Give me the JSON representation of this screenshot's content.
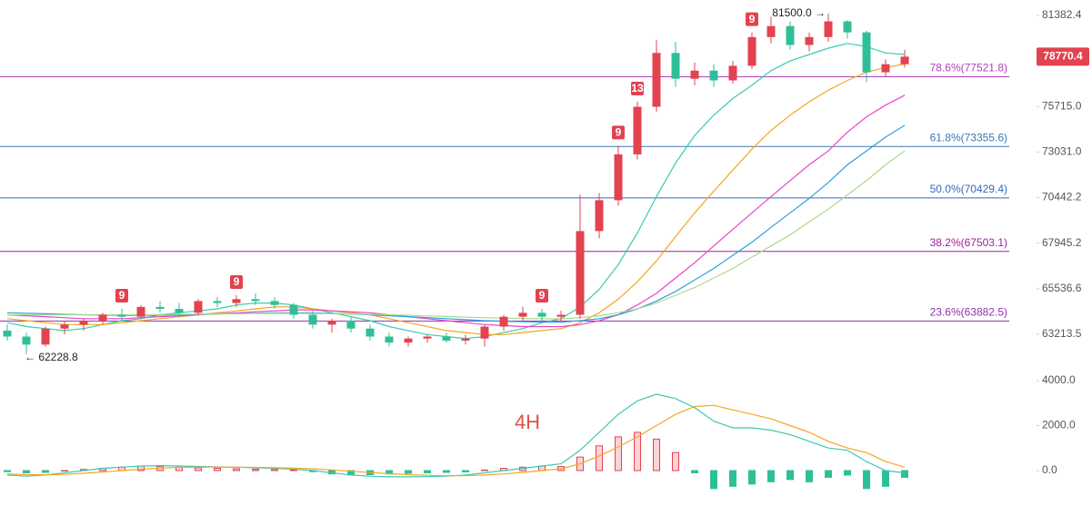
{
  "chart_data": [
    {
      "type": "candlestick",
      "log_scale": true,
      "ylim": [
        61774,
        82384
      ],
      "yticks": [
        81382.4,
        {
          "value": 75715.0,
          "label": "75715.0"
        },
        {
          "value": 73031.0,
          "label": "73031.0"
        },
        70442.2,
        67945.2,
        65536.6,
        63213.5
      ],
      "up_color": "#e3424f",
      "down_color": "#2fbf98",
      "open": [
        63400,
        63100,
        62700,
        63500,
        63700,
        63900,
        64200,
        64100,
        64600,
        64500,
        64300,
        64900,
        64800,
        65000,
        64900,
        64700,
        64200,
        63700,
        63900,
        63500,
        63100,
        62800,
        63000,
        63100,
        62900,
        63000,
        63600,
        64100,
        64300,
        64100,
        64200,
        68600,
        70300,
        72900,
        75700,
        79000,
        77400,
        77900,
        77300,
        78200,
        80000,
        80700,
        79500,
        80000,
        81000,
        80300,
        77800,
        78300
      ],
      "high": [
        63700,
        63300,
        63600,
        63900,
        64000,
        64300,
        64500,
        64700,
        64900,
        64800,
        65000,
        65100,
        65200,
        65300,
        65100,
        64800,
        64400,
        64000,
        64100,
        63700,
        63300,
        63100,
        63200,
        63300,
        63200,
        63700,
        64200,
        64600,
        64500,
        64400,
        70600,
        70700,
        73400,
        76000,
        79800,
        79700,
        78400,
        78300,
        78500,
        80300,
        81300,
        81000,
        80300,
        81500,
        81100,
        80400,
        78600,
        79200
      ],
      "low": [
        62900,
        62228.8,
        62600,
        63200,
        63400,
        63700,
        63900,
        64000,
        64300,
        64100,
        64200,
        64600,
        64600,
        64700,
        64500,
        64000,
        63500,
        63300,
        63300,
        62900,
        62600,
        62600,
        62800,
        62800,
        62700,
        62600,
        63400,
        63900,
        63900,
        63900,
        64000,
        68200,
        70000,
        72600,
        75400,
        76900,
        77000,
        76900,
        77100,
        78000,
        79600,
        79200,
        79100,
        79700,
        79900,
        77200,
        77500,
        78100
      ],
      "close": [
        63100,
        62700,
        63500,
        63700,
        63900,
        64200,
        64100,
        64600,
        64500,
        64300,
        64900,
        64800,
        65000,
        64900,
        64700,
        64200,
        63700,
        63900,
        63500,
        63100,
        62800,
        63000,
        63100,
        62900,
        63000,
        63600,
        64100,
        64300,
        64100,
        64200,
        68600,
        70300,
        72900,
        75700,
        79000,
        77400,
        77900,
        77300,
        78200,
        80000,
        80700,
        79500,
        80000,
        81000,
        80300,
        77800,
        78300,
        78770.4
      ],
      "td_labels": [
        null,
        null,
        null,
        null,
        null,
        null,
        "9",
        null,
        null,
        null,
        null,
        null,
        "9",
        null,
        null,
        null,
        null,
        null,
        null,
        null,
        null,
        null,
        null,
        null,
        null,
        null,
        null,
        null,
        "9",
        null,
        null,
        null,
        "9",
        "13",
        null,
        null,
        null,
        null,
        null,
        "9",
        null,
        null,
        null,
        null,
        null,
        null,
        null,
        null
      ],
      "high_label": "81500.0 →",
      "low_label": "← 62228.8",
      "series": [
        {
          "color": "#3cc9b3",
          "values": [
            63800,
            63600,
            63500,
            63400,
            63500,
            63700,
            63900,
            64000,
            64200,
            64300,
            64400,
            64500,
            64700,
            64800,
            64800,
            64700,
            64500,
            64300,
            64100,
            63900,
            63600,
            63400,
            63200,
            63100,
            63000,
            63100,
            63300,
            63500,
            63800,
            64000,
            64600,
            65500,
            66800,
            68500,
            70500,
            72400,
            74000,
            75200,
            76200,
            77000,
            77900,
            78500,
            78900,
            79300,
            79600,
            79400,
            79000,
            78900
          ]
        },
        {
          "color": "#f5a623",
          "values": [
            64000,
            63900,
            63800,
            63700,
            63700,
            63700,
            63800,
            63900,
            64000,
            64100,
            64200,
            64300,
            64400,
            64500,
            64600,
            64600,
            64500,
            64400,
            64300,
            64200,
            64000,
            63800,
            63600,
            63400,
            63300,
            63200,
            63200,
            63300,
            63400,
            63500,
            63800,
            64300,
            65000,
            65900,
            67000,
            68300,
            69600,
            70800,
            72000,
            73200,
            74300,
            75200,
            76000,
            76700,
            77300,
            77800,
            78100,
            78300
          ]
        },
        {
          "color": "#e845c8",
          "values": [
            64200,
            64150,
            64100,
            64050,
            64000,
            64000,
            64000,
            64050,
            64100,
            64150,
            64200,
            64250,
            64300,
            64350,
            64400,
            64450,
            64450,
            64400,
            64350,
            64300,
            64200,
            64100,
            64000,
            63900,
            63800,
            63700,
            63650,
            63600,
            63600,
            63600,
            63700,
            63900,
            64200,
            64700,
            65300,
            66100,
            66900,
            67800,
            68700,
            69600,
            70500,
            71400,
            72300,
            73100,
            74200,
            75100,
            75800,
            76400
          ]
        },
        {
          "color": "#2e9fe0",
          "values": [
            64300,
            64280,
            64250,
            64220,
            64200,
            64180,
            64170,
            64170,
            64180,
            64200,
            64220,
            64240,
            64260,
            64280,
            64300,
            64300,
            64290,
            64270,
            64240,
            64200,
            64150,
            64100,
            64050,
            64000,
            63950,
            63900,
            63870,
            63850,
            63830,
            63820,
            63900,
            64000,
            64200,
            64500,
            64900,
            65400,
            66000,
            66600,
            67300,
            68000,
            68800,
            69600,
            70400,
            71300,
            72300,
            73100,
            73900,
            74600
          ]
        },
        {
          "color": "#a9d98c",
          "values": [
            64200,
            64200,
            64200,
            64200,
            64200,
            64200,
            64200,
            64200,
            64210,
            64220,
            64230,
            64240,
            64250,
            64260,
            64270,
            64270,
            64260,
            64250,
            64240,
            64220,
            64200,
            64170,
            64140,
            64110,
            64080,
            64050,
            64030,
            64010,
            64000,
            63990,
            64050,
            64150,
            64300,
            64500,
            64800,
            65200,
            65600,
            66100,
            66600,
            67200,
            67800,
            68400,
            69100,
            69800,
            70600,
            71400,
            72300,
            73100
          ]
        }
      ],
      "hlines": [
        {
          "label": "78.6%(77521.8)",
          "value": 77521.8,
          "color": "#b33fc0"
        },
        {
          "label": "61.8%(73355.6)",
          "value": 73355.6,
          "color": "#3b78b8"
        },
        {
          "label": "50.0%(70429.4)",
          "value": 70429.4,
          "color": "#3a66c0"
        },
        {
          "label": "38.2%(67503.1)",
          "value": 67503.1,
          "color": "#a0209a"
        },
        {
          "label": "23.6%(63882.5)",
          "value": 63882.5,
          "color": "#9030b0"
        }
      ]
    },
    {
      "type": "macd",
      "title": "4H",
      "ylim": [
        -1576,
        4768
      ],
      "yticks": [
        {
          "value": 4000,
          "label": "4000.0"
        },
        {
          "value": 2000,
          "label": "2000.0"
        },
        {
          "value": 0,
          "label": "0.0"
        }
      ],
      "up_color": "#e3424f",
      "down_color": "#2fbf98",
      "histogram": [
        -50,
        -100,
        -80,
        0,
        50,
        100,
        150,
        200,
        180,
        150,
        120,
        100,
        80,
        60,
        50,
        20,
        -50,
        -150,
        -200,
        -180,
        -150,
        -120,
        -100,
        -80,
        -60,
        20,
        100,
        150,
        200,
        180,
        600,
        1100,
        1500,
        1700,
        1400,
        800,
        -100,
        -800,
        -700,
        -600,
        -500,
        -400,
        -500,
        -300,
        -200,
        -800,
        -700,
        -300
      ],
      "series": [
        {
          "color": "#3cc9b3",
          "values": [
            -200,
            -250,
            -200,
            -100,
            0,
            100,
            150,
            200,
            220,
            200,
            180,
            160,
            150,
            120,
            100,
            60,
            0,
            -100,
            -200,
            -250,
            -280,
            -280,
            -270,
            -250,
            -200,
            -100,
            0,
            100,
            200,
            300,
            900,
            1700,
            2500,
            3100,
            3400,
            3200,
            2800,
            2200,
            1900,
            1900,
            1800,
            1600,
            1300,
            1000,
            900,
            400,
            0,
            -100
          ]
        },
        {
          "color": "#f5a623",
          "values": [
            -150,
            -180,
            -190,
            -170,
            -120,
            -60,
            0,
            60,
            110,
            140,
            150,
            155,
            150,
            140,
            125,
            110,
            80,
            30,
            -30,
            -90,
            -140,
            -180,
            -210,
            -230,
            -230,
            -200,
            -150,
            -80,
            0,
            80,
            300,
            650,
            1050,
            1500,
            2000,
            2500,
            2850,
            2900,
            2700,
            2500,
            2300,
            2000,
            1700,
            1300,
            1000,
            800,
            400,
            150
          ]
        }
      ]
    }
  ]
}
